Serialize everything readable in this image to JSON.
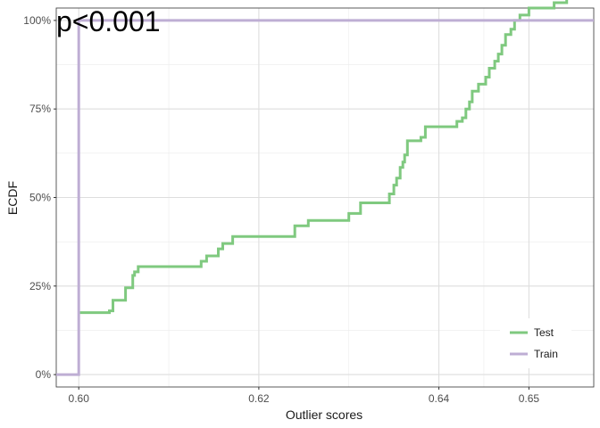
{
  "chart_data": {
    "type": "line",
    "title": "",
    "xlabel": "Outlier scores",
    "ylabel": "ECDF",
    "annotation": "p<0.001",
    "xlim": [
      0.5975,
      0.6572
    ],
    "ylim": [
      -0.035,
      1.035
    ],
    "x_ticks": [
      {
        "value": 0.6,
        "label": "0.60"
      },
      {
        "value": 0.62,
        "label": "0.62"
      },
      {
        "value": 0.64,
        "label": "0.64"
      },
      {
        "value": 0.65,
        "label": "0.65"
      }
    ],
    "y_ticks": [
      {
        "value": 0.0,
        "label": "0%"
      },
      {
        "value": 0.25,
        "label": "25%"
      },
      {
        "value": 0.5,
        "label": "50%"
      },
      {
        "value": 0.75,
        "label": "75%"
      },
      {
        "value": 1.0,
        "label": "100%"
      }
    ],
    "x_minor_grid": [
      0.61,
      0.63,
      0.645
    ],
    "y_minor_grid": [
      0.125,
      0.375,
      0.625,
      0.875
    ],
    "grid": true,
    "legend_position": "bottom-right",
    "series": [
      {
        "name": "Test",
        "color": "#7fc97f",
        "points": [
          [
            0.6,
            0.175
          ],
          [
            0.6034,
            0.175
          ],
          [
            0.6034,
            0.18
          ],
          [
            0.6038,
            0.18
          ],
          [
            0.6038,
            0.21
          ],
          [
            0.6052,
            0.21
          ],
          [
            0.6052,
            0.245
          ],
          [
            0.606,
            0.245
          ],
          [
            0.606,
            0.28
          ],
          [
            0.6062,
            0.28
          ],
          [
            0.6062,
            0.29
          ],
          [
            0.6066,
            0.29
          ],
          [
            0.6066,
            0.305
          ],
          [
            0.6136,
            0.305
          ],
          [
            0.6136,
            0.32
          ],
          [
            0.6142,
            0.32
          ],
          [
            0.6142,
            0.335
          ],
          [
            0.6155,
            0.335
          ],
          [
            0.6155,
            0.355
          ],
          [
            0.616,
            0.355
          ],
          [
            0.616,
            0.37
          ],
          [
            0.6171,
            0.37
          ],
          [
            0.6171,
            0.39
          ],
          [
            0.624,
            0.39
          ],
          [
            0.624,
            0.42
          ],
          [
            0.6255,
            0.42
          ],
          [
            0.6255,
            0.435
          ],
          [
            0.63,
            0.435
          ],
          [
            0.63,
            0.455
          ],
          [
            0.6313,
            0.455
          ],
          [
            0.6313,
            0.485
          ],
          [
            0.6345,
            0.485
          ],
          [
            0.6345,
            0.51
          ],
          [
            0.635,
            0.51
          ],
          [
            0.635,
            0.535
          ],
          [
            0.6353,
            0.535
          ],
          [
            0.6353,
            0.555
          ],
          [
            0.6357,
            0.555
          ],
          [
            0.6357,
            0.585
          ],
          [
            0.636,
            0.585
          ],
          [
            0.636,
            0.6
          ],
          [
            0.6362,
            0.6
          ],
          [
            0.6362,
            0.62
          ],
          [
            0.6365,
            0.62
          ],
          [
            0.6365,
            0.66
          ],
          [
            0.638,
            0.66
          ],
          [
            0.638,
            0.67
          ],
          [
            0.6385,
            0.67
          ],
          [
            0.6385,
            0.7
          ],
          [
            0.642,
            0.7
          ],
          [
            0.642,
            0.715
          ],
          [
            0.6426,
            0.715
          ],
          [
            0.6426,
            0.725
          ],
          [
            0.643,
            0.725
          ],
          [
            0.643,
            0.75
          ],
          [
            0.6434,
            0.75
          ],
          [
            0.6434,
            0.77
          ],
          [
            0.6437,
            0.77
          ],
          [
            0.6437,
            0.8
          ],
          [
            0.6444,
            0.8
          ],
          [
            0.6444,
            0.82
          ],
          [
            0.6452,
            0.82
          ],
          [
            0.6452,
            0.84
          ],
          [
            0.6456,
            0.84
          ],
          [
            0.6456,
            0.865
          ],
          [
            0.6462,
            0.865
          ],
          [
            0.6462,
            0.885
          ],
          [
            0.6466,
            0.885
          ],
          [
            0.6466,
            0.905
          ],
          [
            0.647,
            0.905
          ],
          [
            0.647,
            0.93
          ],
          [
            0.6474,
            0.93
          ],
          [
            0.6474,
            0.96
          ],
          [
            0.648,
            0.96
          ],
          [
            0.648,
            0.975
          ],
          [
            0.6484,
            0.975
          ],
          [
            0.6484,
            1.0
          ],
          [
            0.649,
            1.0
          ],
          [
            0.649,
            1.015
          ],
          [
            0.65,
            1.015
          ],
          [
            0.65,
            1.035
          ],
          [
            0.6528,
            1.035
          ],
          [
            0.6528,
            1.05
          ],
          [
            0.6542,
            1.05
          ],
          [
            0.6542,
            1.075
          ]
        ]
      },
      {
        "name": "Train",
        "color": "#beaed4",
        "points": [
          [
            0.5975,
            0.0
          ],
          [
            0.6,
            0.0
          ],
          [
            0.6,
            1.0
          ],
          [
            0.6572,
            1.0
          ]
        ]
      }
    ]
  }
}
